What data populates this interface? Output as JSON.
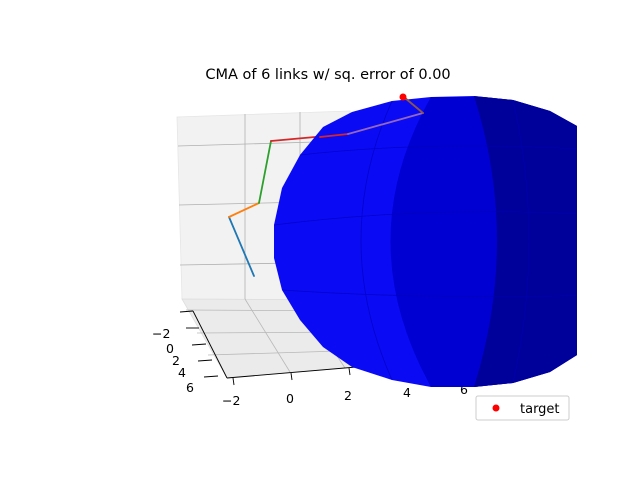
{
  "chart_data": {
    "type": "line",
    "title": "CMA of 6 links w/ sq. error of 0.00",
    "projection": "3d",
    "grid": true,
    "x_ticks": [
      "−2",
      "0",
      "2",
      "4",
      "6"
    ],
    "y_ticks": [
      "−2",
      "0",
      "2",
      "4",
      "6"
    ],
    "legend": {
      "placement": "bottom-right",
      "entries": [
        {
          "label": "target",
          "color": "#ff0000",
          "marker": "o"
        }
      ]
    },
    "series": [
      {
        "color": "#1f77b4"
      },
      {
        "color": "#ff7f0e"
      },
      {
        "color": "#2ca02c"
      },
      {
        "color": "#d62728"
      },
      {
        "color": "#9467bd"
      },
      {
        "color": "#8c564b"
      }
    ],
    "target_color": "#ff0000",
    "sphere_color": "#0000ff"
  }
}
